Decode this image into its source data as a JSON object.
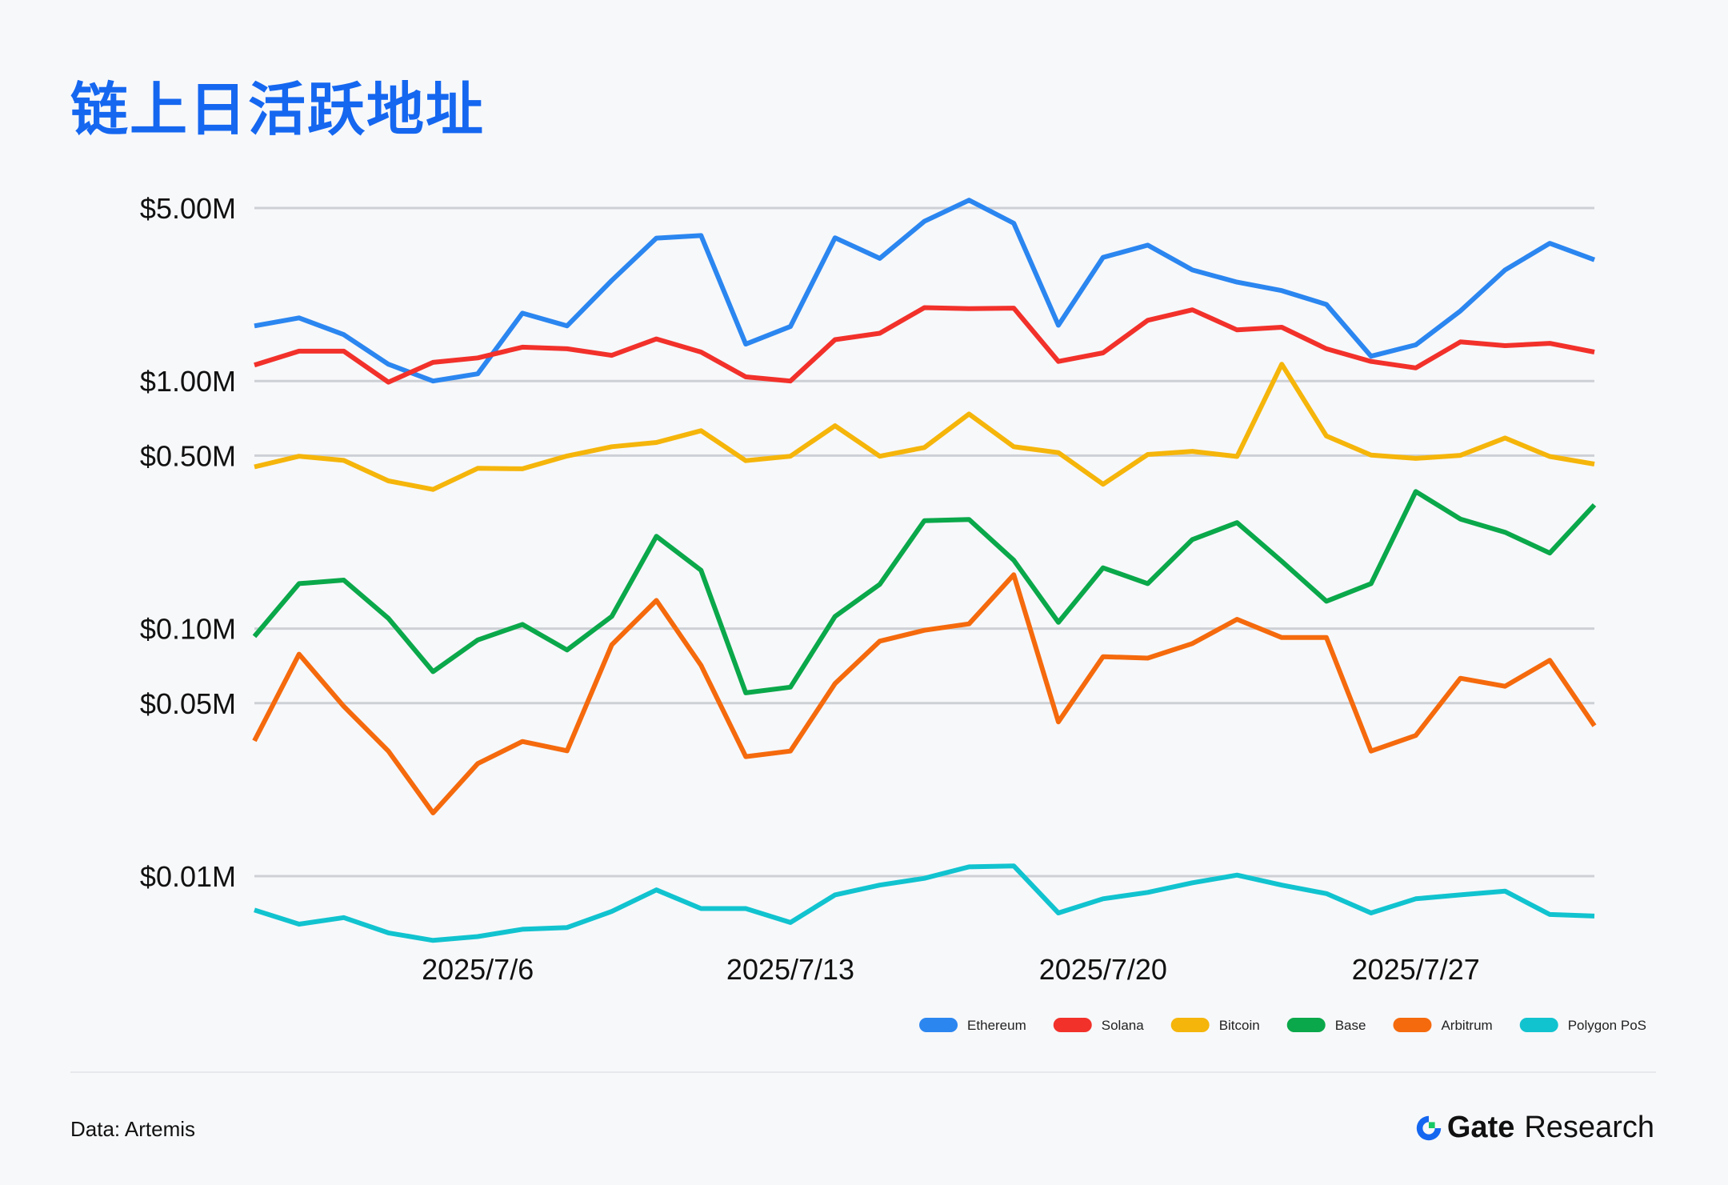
{
  "header": {
    "title": "链上日活跃地址"
  },
  "footer": {
    "source": "Data: Artemis",
    "brand_name": "Gate",
    "brand_suffix": "Research"
  },
  "colors": {
    "title": "#1567f0",
    "Ethereum": "#2b86f0",
    "Solana": "#f2312b",
    "Bitcoin": "#f5b50a",
    "Base": "#0aa84a",
    "Arbitrum": "#f56a0d",
    "Polygon PoS": "#11c3cf"
  },
  "chart_data": {
    "type": "line",
    "title": "链上日活跃地址",
    "xlabel": "",
    "ylabel": "",
    "yscale": "log",
    "ylim": [
      0.0063,
      5.3
    ],
    "grid": true,
    "legend_position": "bottom-right",
    "y_ticks": [
      {
        "value": 5,
        "label": "$5.00M"
      },
      {
        "value": 1,
        "label": "$1.00M"
      },
      {
        "value": 0.5,
        "label": "$0.50M"
      },
      {
        "value": 0.1,
        "label": "$0.10M"
      },
      {
        "value": 0.05,
        "label": "$0.05M"
      },
      {
        "value": 0.01,
        "label": "$0.01M"
      }
    ],
    "x_ticks": [
      {
        "value": "2025/7/6",
        "label": "2025/7/6"
      },
      {
        "value": "2025/7/13",
        "label": "2025/7/13"
      },
      {
        "value": "2025/7/20",
        "label": "2025/7/20"
      },
      {
        "value": "2025/7/27",
        "label": "2025/7/27"
      }
    ],
    "x": [
      "2025/7/1",
      "2025/7/2",
      "2025/7/3",
      "2025/7/4",
      "2025/7/5",
      "2025/7/6",
      "2025/7/7",
      "2025/7/8",
      "2025/7/9",
      "2025/7/10",
      "2025/7/11",
      "2025/7/12",
      "2025/7/13",
      "2025/7/14",
      "2025/7/15",
      "2025/7/16",
      "2025/7/17",
      "2025/7/18",
      "2025/7/19",
      "2025/7/20",
      "2025/7/21",
      "2025/7/22",
      "2025/7/23",
      "2025/7/24",
      "2025/7/25",
      "2025/7/26",
      "2025/7/27",
      "2025/7/28",
      "2025/7/29",
      "2025/7/30",
      "2025/7/31"
    ],
    "series": [
      {
        "name": "Ethereum",
        "values": [
          1.67,
          1.8,
          1.54,
          1.17,
          1.0,
          1.07,
          1.88,
          1.67,
          2.55,
          3.78,
          3.87,
          1.41,
          1.66,
          3.79,
          3.13,
          4.42,
          5.38,
          4.34,
          1.68,
          3.16,
          3.54,
          2.81,
          2.51,
          2.32,
          2.04,
          1.26,
          1.4,
          1.92,
          2.81,
          3.6,
          3.09
        ]
      },
      {
        "name": "Solana",
        "values": [
          1.16,
          1.32,
          1.32,
          0.99,
          1.19,
          1.24,
          1.37,
          1.35,
          1.27,
          1.48,
          1.31,
          1.04,
          1.0,
          1.47,
          1.56,
          1.98,
          1.96,
          1.97,
          1.2,
          1.3,
          1.76,
          1.94,
          1.61,
          1.65,
          1.35,
          1.2,
          1.13,
          1.44,
          1.39,
          1.42,
          1.31
        ]
      },
      {
        "name": "Bitcoin",
        "values": [
          0.45,
          0.497,
          0.478,
          0.395,
          0.365,
          0.444,
          0.442,
          0.498,
          0.543,
          0.565,
          0.63,
          0.477,
          0.497,
          0.66,
          0.497,
          0.539,
          0.736,
          0.543,
          0.514,
          0.383,
          0.505,
          0.52,
          0.496,
          1.17,
          0.6,
          0.502,
          0.487,
          0.501,
          0.589,
          0.496,
          0.462
        ]
      },
      {
        "name": "Base",
        "values": [
          0.093,
          0.152,
          0.157,
          0.11,
          0.067,
          0.09,
          0.104,
          0.082,
          0.112,
          0.236,
          0.172,
          0.055,
          0.058,
          0.112,
          0.151,
          0.273,
          0.276,
          0.189,
          0.106,
          0.176,
          0.152,
          0.229,
          0.268,
          0.187,
          0.129,
          0.152,
          0.358,
          0.277,
          0.245,
          0.202,
          0.316
        ]
      },
      {
        "name": "Arbitrum",
        "values": [
          0.0352,
          0.0788,
          0.0485,
          0.032,
          0.018,
          0.0285,
          0.035,
          0.0321,
          0.086,
          0.13,
          0.071,
          0.0304,
          0.032,
          0.06,
          0.089,
          0.0985,
          0.1045,
          0.165,
          0.042,
          0.077,
          0.076,
          0.087,
          0.109,
          0.092,
          0.092,
          0.032,
          0.037,
          0.063,
          0.0585,
          0.0745,
          0.0405
        ]
      },
      {
        "name": "Polygon PoS",
        "values": [
          0.0073,
          0.0064,
          0.0068,
          0.0059,
          0.0055,
          0.0057,
          0.0061,
          0.0062,
          0.0072,
          0.0088,
          0.0074,
          0.0074,
          0.0065,
          0.0084,
          0.0092,
          0.0098,
          0.0109,
          0.011,
          0.0071,
          0.0081,
          0.0086,
          0.0094,
          0.0101,
          0.0092,
          0.0085,
          0.0071,
          0.0081,
          0.0084,
          0.0087,
          0.007,
          0.0069
        ]
      }
    ]
  }
}
